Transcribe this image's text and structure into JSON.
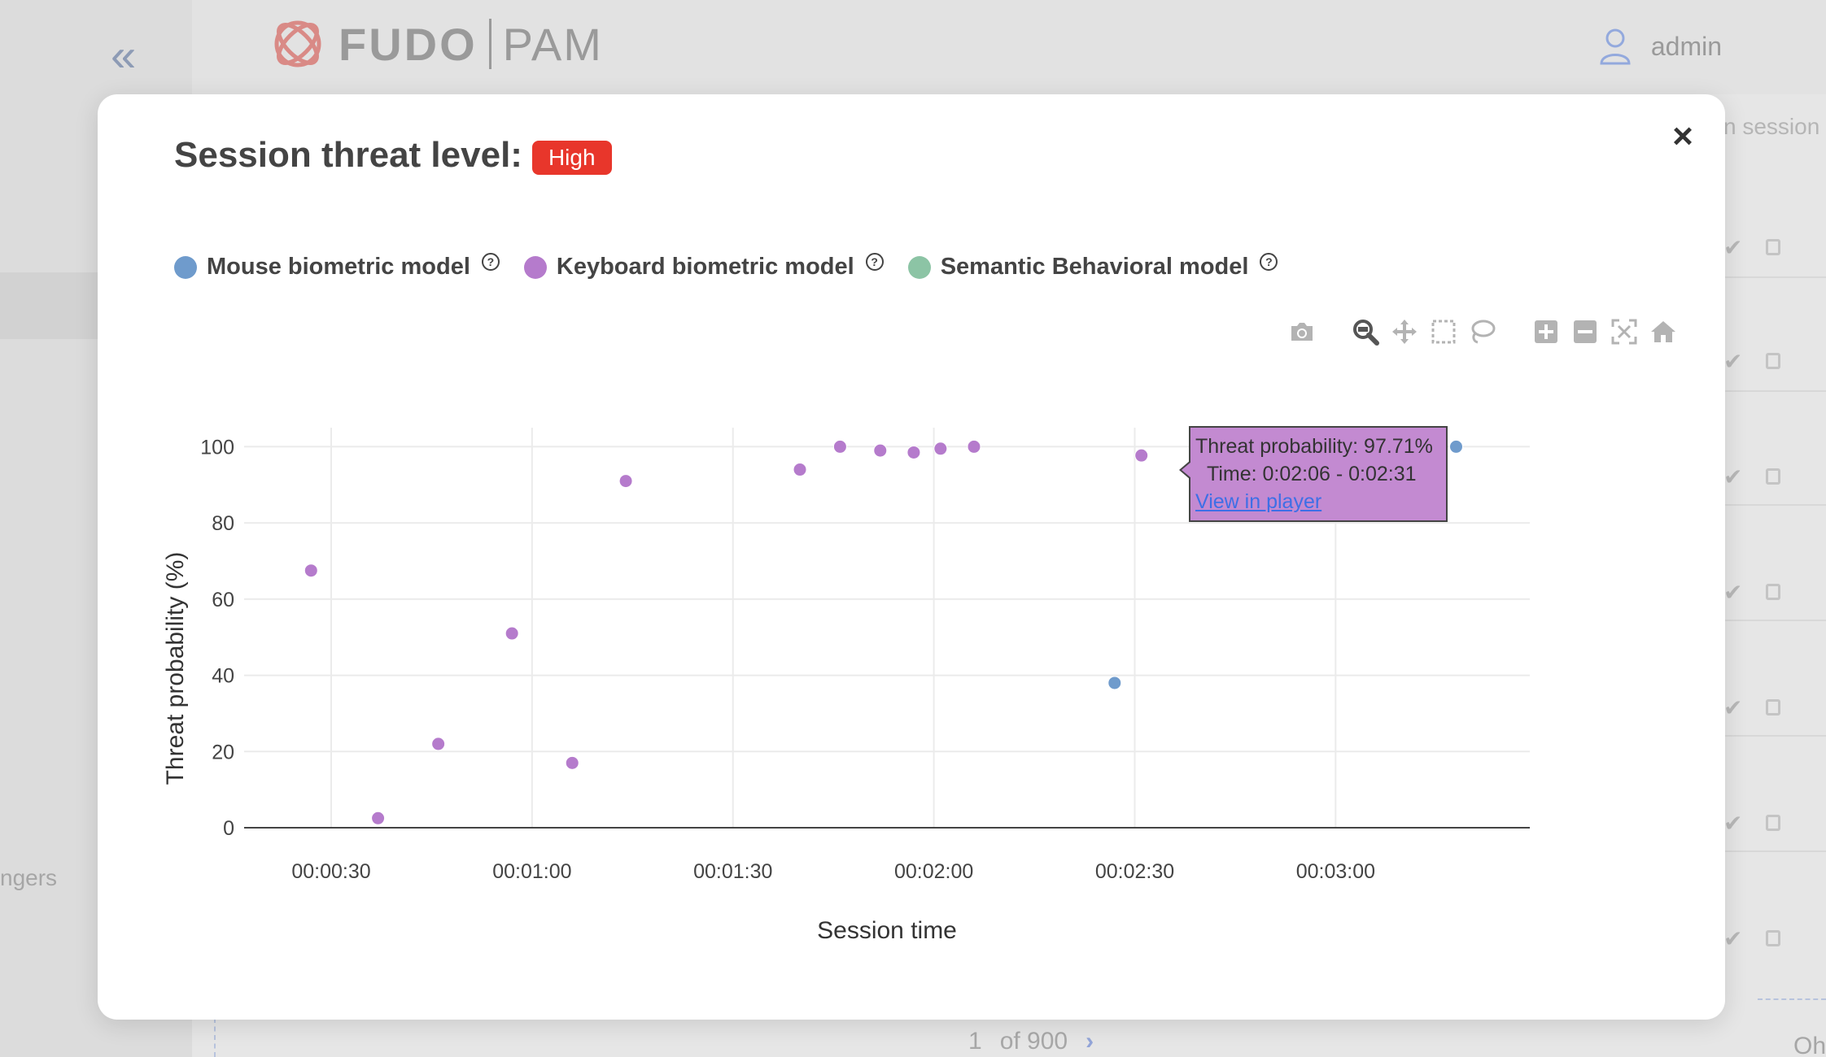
{
  "app": {
    "logo_primary": "FUDO",
    "logo_secondary": "PAM",
    "user_name": "admin",
    "background_tab_text": "n session",
    "background_left_text": "ngers",
    "pager_current": "1",
    "pager_total": "of 900",
    "background_corner_text": "Oh"
  },
  "modal": {
    "title": "Session threat level:",
    "threat_level": "High",
    "threat_color": "#e8362b",
    "close_label": "×",
    "legend": [
      {
        "label": "Mouse biometric model",
        "color": "#6f9bcc"
      },
      {
        "label": "Keyboard biometric model",
        "color": "#b57bcc"
      },
      {
        "label": "Semantic Behavioral model",
        "color": "#8cc4a5"
      }
    ],
    "help_glyph": "?",
    "toolbar": [
      "camera-icon",
      "zoom-icon",
      "pan-icon",
      "box-select-icon",
      "lasso-select-icon",
      "zoom-in-icon",
      "zoom-out-icon",
      "autoscale-icon",
      "reset-axes-icon"
    ]
  },
  "tooltip": {
    "probability": "Threat probability: 97.71%",
    "time": "Time: 0:02:06 - 0:02:31",
    "link": "View in player"
  },
  "chart_data": {
    "type": "scatter",
    "xlabel": "Session time",
    "ylabel": "Threat probability (%)",
    "xlim_seconds": [
      17,
      209
    ],
    "ylim": [
      0,
      105
    ],
    "x_ticks": [
      "00:00:30",
      "00:01:00",
      "00:01:30",
      "00:02:00",
      "00:02:30",
      "00:03:00"
    ],
    "y_ticks": [
      0,
      20,
      40,
      60,
      80,
      100
    ],
    "grid": true,
    "series": [
      {
        "name": "Mouse biometric model",
        "color": "#6f9bcc",
        "x": [
          "00:02:27",
          "00:03:18"
        ],
        "y": [
          38,
          100
        ]
      },
      {
        "name": "Keyboard biometric model",
        "color": "#b57bcc",
        "x": [
          "00:00:27",
          "00:00:37",
          "00:00:46",
          "00:00:57",
          "00:01:06",
          "00:01:14",
          "00:01:40",
          "00:01:46",
          "00:01:52",
          "00:01:57",
          "00:02:01",
          "00:02:06",
          "00:02:31"
        ],
        "y": [
          67.5,
          2.5,
          22,
          51,
          17,
          91,
          94,
          100,
          99,
          98.5,
          99.5,
          100,
          97.71
        ]
      },
      {
        "name": "Semantic Behavioral model",
        "color": "#8cc4a5",
        "x": [],
        "y": []
      }
    ]
  }
}
